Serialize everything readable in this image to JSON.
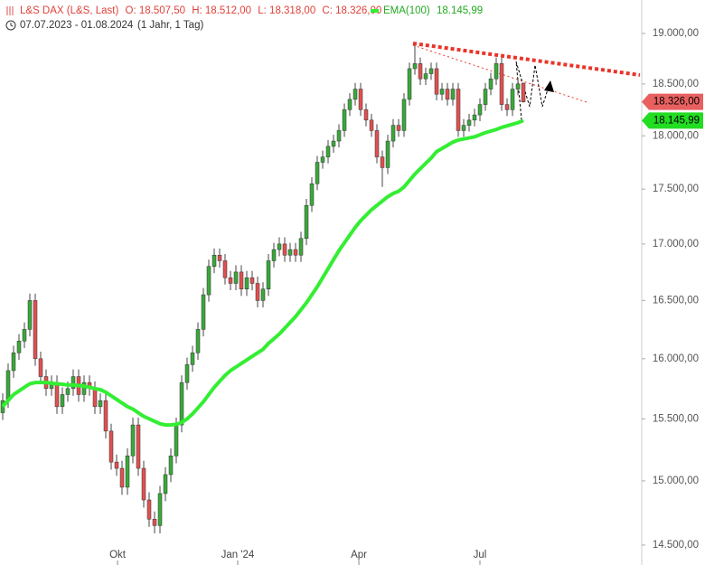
{
  "chart_data": {
    "type": "candlestick",
    "title": "L&S DAX (L&S, Last)",
    "ohlc_labels": [
      "O: 18.507,50",
      "H: 18.512,00",
      "L: 18.318,00",
      "C: 18.326,00"
    ],
    "period": "07.07.2023 - 01.08.2024",
    "interval": "(1 Jahr, 1 Tag)",
    "log_scale": true,
    "grid": false,
    "up_color": "#3aa83a",
    "down_color": "#e05050",
    "ylim": [
      14348,
      19339
    ],
    "yticks": [
      {
        "value": 14500,
        "label": "14.500,00"
      },
      {
        "value": 15000,
        "label": "15.000,00"
      },
      {
        "value": 15500,
        "label": "15.500,00"
      },
      {
        "value": 16000,
        "label": "16.000,00"
      },
      {
        "value": 16500,
        "label": "16.500,00"
      },
      {
        "value": 17000,
        "label": "17.000,00"
      },
      {
        "value": 17500,
        "label": "17.500,00"
      },
      {
        "value": 18000,
        "label": "18.000,00"
      },
      {
        "value": 18500,
        "label": "18.500,00"
      },
      {
        "value": 19000,
        "label": "19.000,00"
      }
    ],
    "xlim": [
      -0.5,
      117.83
    ],
    "xticks": [
      {
        "value": 21.17,
        "label": "Okt"
      },
      {
        "value": 43.33,
        "label": "Jan '24"
      },
      {
        "value": 65.67,
        "label": "Apr"
      },
      {
        "value": 88,
        "label": "Jul"
      }
    ],
    "open": [
      15550,
      15650,
      15900,
      16050,
      16150,
      16250,
      16500,
      16000,
      15850,
      15750,
      15800,
      15600,
      15700,
      15750,
      15850,
      15700,
      15800,
      15750,
      15600,
      15650,
      15400,
      15150,
      15100,
      14950,
      15200,
      15450,
      15100,
      14850,
      14700,
      14650,
      14900,
      15050,
      15200,
      15450,
      15800,
      15950,
      16050,
      16250,
      16550,
      16800,
      16900,
      16850,
      16700,
      16650,
      16750,
      16600,
      16700,
      16650,
      16500,
      16600,
      16850,
      16950,
      17000,
      16900,
      16950,
      16900,
      17050,
      17350,
      17550,
      17750,
      17800,
      17900,
      17950,
      18050,
      18250,
      18350,
      18450,
      18250,
      18150,
      18050,
      17800,
      17700,
      17950,
      18100,
      18050,
      18350,
      18650,
      18700,
      18550,
      18600,
      18650,
      18400,
      18450,
      18350,
      18450,
      18050,
      18100,
      18150,
      18200,
      18300,
      18450,
      18550,
      18700,
      18300,
      18250,
      18450,
      18507.5
    ],
    "high": [
      15710,
      15960,
      16110,
      16210,
      16310,
      16560,
      16560,
      16060,
      15910,
      15860,
      15860,
      15760,
      15810,
      15910,
      15910,
      15860,
      15860,
      15810,
      15710,
      15710,
      15460,
      15210,
      15160,
      15260,
      15510,
      15510,
      15160,
      14910,
      14760,
      14960,
      15110,
      15260,
      15510,
      15860,
      16010,
      16110,
      16310,
      16610,
      16860,
      16960,
      16960,
      16910,
      16760,
      16810,
      16810,
      16760,
      16760,
      16710,
      16660,
      16910,
      17010,
      17060,
      17060,
      17010,
      17010,
      17110,
      17410,
      17610,
      17810,
      17860,
      17960,
      18010,
      18110,
      18310,
      18410,
      18510,
      18510,
      18310,
      18210,
      18110,
      17860,
      18010,
      18160,
      18160,
      18410,
      18710,
      18880,
      18760,
      18660,
      18710,
      18710,
      18510,
      18510,
      18510,
      18510,
      18160,
      18210,
      18260,
      18360,
      18510,
      18610,
      18760,
      18760,
      18360,
      18510,
      18560,
      18512
    ],
    "low": [
      15490,
      15590,
      15840,
      15990,
      16090,
      16190,
      15940,
      15790,
      15690,
      15690,
      15540,
      15540,
      15640,
      15690,
      15640,
      15640,
      15690,
      15540,
      15540,
      15340,
      15090,
      15040,
      14890,
      14890,
      15140,
      15040,
      14790,
      14640,
      14590,
      14590,
      14840,
      14990,
      15140,
      15390,
      15740,
      15890,
      15990,
      16190,
      16490,
      16740,
      16790,
      16640,
      16590,
      16590,
      16540,
      16540,
      16590,
      16440,
      16440,
      16540,
      16790,
      16890,
      16840,
      16840,
      16840,
      16840,
      16990,
      17290,
      17490,
      17690,
      17740,
      17840,
      17890,
      17990,
      18190,
      18290,
      18190,
      18090,
      17990,
      17740,
      17520,
      17640,
      17890,
      17990,
      17990,
      18290,
      18590,
      18490,
      18490,
      18540,
      18340,
      18340,
      18290,
      18290,
      17990,
      17990,
      18040,
      18090,
      18140,
      18240,
      18390,
      18490,
      18240,
      18190,
      18190,
      18390,
      18318
    ],
    "close": [
      15650,
      15900,
      16050,
      16150,
      16250,
      16500,
      16000,
      15850,
      15750,
      15800,
      15600,
      15700,
      15750,
      15850,
      15700,
      15800,
      15750,
      15600,
      15650,
      15400,
      15150,
      15100,
      14950,
      15200,
      15450,
      15100,
      14850,
      14700,
      14650,
      14900,
      15050,
      15200,
      15450,
      15800,
      15950,
      16050,
      16250,
      16550,
      16800,
      16900,
      16850,
      16700,
      16650,
      16750,
      16600,
      16700,
      16650,
      16500,
      16600,
      16850,
      16950,
      17000,
      16900,
      16950,
      16900,
      17050,
      17350,
      17550,
      17750,
      17800,
      17900,
      17950,
      18050,
      18250,
      18350,
      18450,
      18250,
      18150,
      18050,
      17800,
      17700,
      17950,
      18100,
      18050,
      18350,
      18650,
      18700,
      18550,
      18600,
      18650,
      18400,
      18450,
      18350,
      18450,
      18050,
      18100,
      18150,
      18200,
      18300,
      18450,
      18550,
      18700,
      18300,
      18250,
      18450,
      18500,
      18326
    ],
    "ema": {
      "name": "EMA(100)",
      "value_label": "18.145,99",
      "color": "#33ee33",
      "values": [
        15600,
        15650,
        15700,
        15730,
        15760,
        15790,
        15800,
        15800,
        15800,
        15795,
        15790,
        15785,
        15780,
        15780,
        15775,
        15770,
        15760,
        15750,
        15740,
        15720,
        15690,
        15660,
        15630,
        15600,
        15580,
        15550,
        15520,
        15500,
        15480,
        15460,
        15450,
        15450,
        15455,
        15470,
        15500,
        15540,
        15590,
        15640,
        15700,
        15760,
        15810,
        15860,
        15900,
        15930,
        15960,
        15990,
        16020,
        16050,
        16080,
        16130,
        16170,
        16210,
        16260,
        16310,
        16360,
        16420,
        16480,
        16550,
        16620,
        16700,
        16780,
        16860,
        16940,
        17010,
        17080,
        17150,
        17210,
        17260,
        17310,
        17350,
        17390,
        17430,
        17460,
        17480,
        17520,
        17580,
        17640,
        17690,
        17740,
        17790,
        17850,
        17880,
        17910,
        17940,
        17960,
        17970,
        17980,
        17990,
        18010,
        18030,
        18045,
        18060,
        18080,
        18095,
        18110,
        18125,
        18145.99
      ]
    },
    "price_tags": [
      {
        "value": 18326,
        "label": "18.326,00",
        "color": "#e86060"
      },
      {
        "value": 18145.99,
        "label": "18.145,99",
        "color": "#22dd22"
      }
    ]
  }
}
